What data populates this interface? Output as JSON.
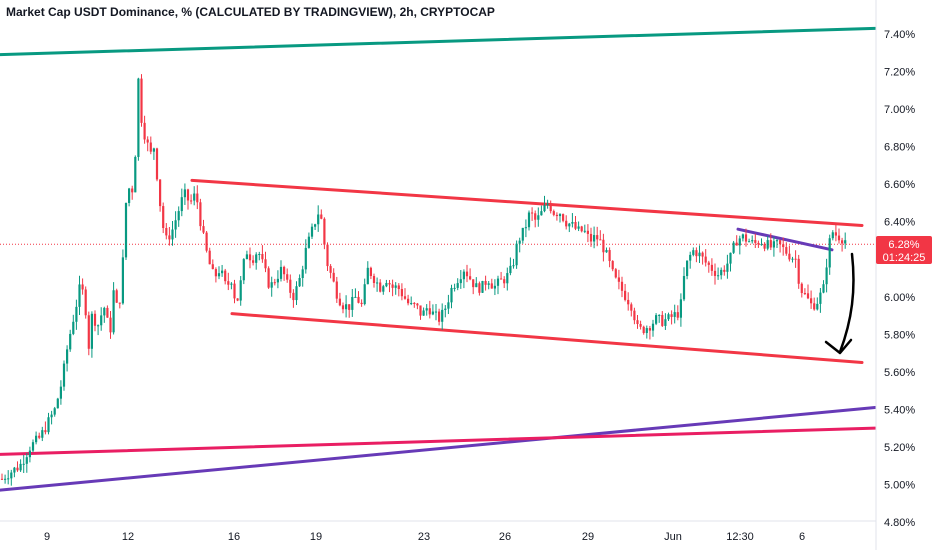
{
  "header": {
    "title": "Market Cap USDT Dominance, % (CALCULATED BY TRADINGVIEW), 2h, CRYPTOCAP"
  },
  "price_badge": {
    "value": "6.28%",
    "countdown": "01:24:25",
    "color": "#f23645"
  },
  "colors": {
    "up": "#089981",
    "down": "#f23645",
    "channel": "#f23645",
    "teal_line": "#089981",
    "purple_line": "#673ab7",
    "magenta_line": "#e91e63",
    "annotation": "#000000"
  },
  "chart_data": {
    "type": "candlestick",
    "y_unit": "%",
    "ylim": [
      4.75,
      7.58
    ],
    "y_ticks": [
      "7.40%",
      "7.20%",
      "7.00%",
      "6.80%",
      "6.60%",
      "6.40%",
      "6.20%",
      "6.00%",
      "5.80%",
      "5.60%",
      "5.40%",
      "5.20%",
      "5.00%",
      "4.80%"
    ],
    "x_ticks": [
      "9",
      "12",
      "16",
      "19",
      "23",
      "26",
      "29",
      "Jun",
      "12:30",
      "6"
    ],
    "last_price": 6.28,
    "grid": false,
    "price_path": [
      [
        0,
        5.02
      ],
      [
        6,
        5.05
      ],
      [
        20,
        5.1
      ],
      [
        30,
        5.2
      ],
      [
        40,
        5.25
      ],
      [
        55,
        5.4
      ],
      [
        62,
        5.55
      ],
      [
        68,
        5.75
      ],
      [
        74,
        5.9
      ],
      [
        80,
        6.05
      ],
      [
        85,
        6.0
      ],
      [
        88,
        5.7
      ],
      [
        92,
        5.9
      ],
      [
        98,
        5.85
      ],
      [
        104,
        5.95
      ],
      [
        110,
        5.8
      ],
      [
        114,
        6.05
      ],
      [
        118,
        5.9
      ],
      [
        122,
        6.1
      ],
      [
        126,
        6.5
      ],
      [
        130,
        6.6
      ],
      [
        134,
        6.55
      ],
      [
        137,
        7.05
      ],
      [
        139,
        7.2
      ],
      [
        142,
        6.9
      ],
      [
        146,
        6.85
      ],
      [
        150,
        6.75
      ],
      [
        154,
        6.8
      ],
      [
        158,
        6.6
      ],
      [
        162,
        6.4
      ],
      [
        166,
        6.3
      ],
      [
        172,
        6.35
      ],
      [
        178,
        6.45
      ],
      [
        184,
        6.55
      ],
      [
        190,
        6.5
      ],
      [
        196,
        6.55
      ],
      [
        202,
        6.35
      ],
      [
        208,
        6.2
      ],
      [
        214,
        6.1
      ],
      [
        220,
        6.15
      ],
      [
        226,
        6.05
      ],
      [
        232,
        6.1
      ],
      [
        236,
        5.95
      ],
      [
        240,
        6.05
      ],
      [
        246,
        6.25
      ],
      [
        252,
        6.2
      ],
      [
        258,
        6.25
      ],
      [
        264,
        6.15
      ],
      [
        270,
        6.05
      ],
      [
        276,
        6.1
      ],
      [
        282,
        6.15
      ],
      [
        288,
        6.05
      ],
      [
        294,
        6.0
      ],
      [
        300,
        6.1
      ],
      [
        306,
        6.25
      ],
      [
        312,
        6.35
      ],
      [
        318,
        6.45
      ],
      [
        322,
        6.4
      ],
      [
        326,
        6.2
      ],
      [
        332,
        6.1
      ],
      [
        338,
        6.0
      ],
      [
        344,
        5.95
      ],
      [
        350,
        5.95
      ],
      [
        356,
        6.0
      ],
      [
        362,
        5.95
      ],
      [
        368,
        6.15
      ],
      [
        374,
        6.1
      ],
      [
        380,
        6.05
      ],
      [
        386,
        6.1
      ],
      [
        392,
        6.05
      ],
      [
        398,
        6.05
      ],
      [
        404,
        6.0
      ],
      [
        410,
        5.95
      ],
      [
        416,
        5.95
      ],
      [
        422,
        5.9
      ],
      [
        428,
        5.95
      ],
      [
        434,
        5.9
      ],
      [
        440,
        5.88
      ],
      [
        446,
        5.95
      ],
      [
        452,
        6.05
      ],
      [
        458,
        6.1
      ],
      [
        464,
        6.15
      ],
      [
        470,
        6.1
      ],
      [
        476,
        6.05
      ],
      [
        482,
        6.05
      ],
      [
        488,
        6.1
      ],
      [
        494,
        6.05
      ],
      [
        500,
        6.08
      ],
      [
        506,
        6.1
      ],
      [
        512,
        6.15
      ],
      [
        518,
        6.3
      ],
      [
        524,
        6.35
      ],
      [
        530,
        6.45
      ],
      [
        536,
        6.4
      ],
      [
        542,
        6.45
      ],
      [
        548,
        6.5
      ],
      [
        554,
        6.45
      ],
      [
        560,
        6.45
      ],
      [
        566,
        6.4
      ],
      [
        572,
        6.38
      ],
      [
        578,
        6.35
      ],
      [
        584,
        6.35
      ],
      [
        590,
        6.3
      ],
      [
        596,
        6.32
      ],
      [
        602,
        6.28
      ],
      [
        608,
        6.2
      ],
      [
        614,
        6.1
      ],
      [
        620,
        6.05
      ],
      [
        626,
        6.0
      ],
      [
        632,
        5.95
      ],
      [
        638,
        5.82
      ],
      [
        644,
        5.83
      ],
      [
        650,
        5.85
      ],
      [
        656,
        5.88
      ],
      [
        662,
        5.87
      ],
      [
        668,
        5.88
      ],
      [
        674,
        5.9
      ],
      [
        680,
        5.92
      ],
      [
        684,
        6.1
      ],
      [
        688,
        6.2
      ],
      [
        694,
        6.25
      ],
      [
        700,
        6.22
      ],
      [
        706,
        6.18
      ],
      [
        712,
        6.15
      ],
      [
        718,
        6.12
      ],
      [
        724,
        6.15
      ],
      [
        730,
        6.2
      ],
      [
        736,
        6.3
      ],
      [
        742,
        6.32
      ],
      [
        748,
        6.3
      ],
      [
        754,
        6.28
      ],
      [
        760,
        6.3
      ],
      [
        766,
        6.28
      ],
      [
        772,
        6.26
      ],
      [
        778,
        6.28
      ],
      [
        784,
        6.25
      ],
      [
        790,
        6.22
      ],
      [
        796,
        6.2
      ],
      [
        800,
        6.05
      ],
      [
        806,
        6.0
      ],
      [
        812,
        5.95
      ],
      [
        818,
        5.98
      ],
      [
        824,
        6.05
      ],
      [
        828,
        6.25
      ],
      [
        832,
        6.35
      ],
      [
        836,
        6.33
      ],
      [
        840,
        6.32
      ],
      [
        846,
        6.3
      ]
    ],
    "trendlines": [
      {
        "name": "teal-resistance",
        "from": [
          0,
          7.29
        ],
        "to": [
          875,
          7.43
        ],
        "color": "#089981"
      },
      {
        "name": "channel-upper",
        "from": [
          192,
          6.62
        ],
        "to": [
          862,
          6.38
        ],
        "color": "#f23645"
      },
      {
        "name": "channel-lower",
        "from": [
          232,
          5.91
        ],
        "to": [
          862,
          5.65
        ],
        "color": "#f23645"
      },
      {
        "name": "purple-short",
        "from": [
          738,
          6.36
        ],
        "to": [
          832,
          6.25
        ],
        "color": "#673ab7"
      },
      {
        "name": "purple-support",
        "from": [
          0,
          4.97
        ],
        "to": [
          875,
          5.41
        ],
        "color": "#673ab7"
      },
      {
        "name": "magenta-support",
        "from": [
          0,
          5.16
        ],
        "to": [
          875,
          5.3
        ],
        "color": "#e91e63"
      }
    ]
  }
}
